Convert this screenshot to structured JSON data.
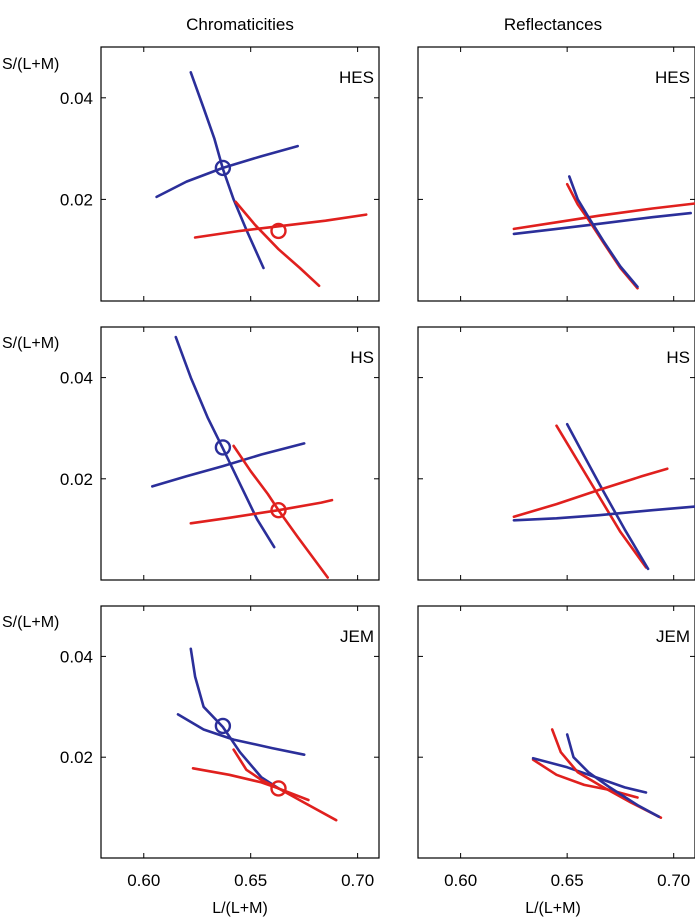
{
  "figure": {
    "column_titles": [
      "Chromaticities",
      "Reflectances"
    ],
    "y_axis_label": "S/(L+M)",
    "x_axis_label": "L/(L+M)",
    "colors": {
      "blue": "#2b2f9a",
      "red": "#e0201e"
    }
  },
  "chart_data": [
    {
      "type": "line",
      "panel": "chromaticities-HES",
      "label": "HES",
      "xlim": [
        0.58,
        0.71
      ],
      "ylim": [
        0.0,
        0.05
      ],
      "xticks": [
        0.6,
        0.65,
        0.7
      ],
      "yticks": [
        0.02,
        0.04
      ],
      "series": [
        {
          "color": "blue",
          "points": [
            [
              0.622,
              0.045
            ],
            [
              0.628,
              0.038
            ],
            [
              0.633,
              0.032
            ],
            [
              0.637,
              0.026
            ],
            [
              0.642,
              0.02
            ],
            [
              0.648,
              0.014
            ],
            [
              0.656,
              0.0065
            ]
          ]
        },
        {
          "color": "blue",
          "points": [
            [
              0.606,
              0.0205
            ],
            [
              0.62,
              0.0235
            ],
            [
              0.637,
              0.0262
            ],
            [
              0.655,
              0.0285
            ],
            [
              0.672,
              0.0305
            ]
          ]
        },
        {
          "color": "red",
          "points": [
            [
              0.643,
              0.0195
            ],
            [
              0.652,
              0.015
            ],
            [
              0.663,
              0.0102
            ],
            [
              0.673,
              0.0065
            ],
            [
              0.682,
              0.003
            ]
          ]
        },
        {
          "color": "red",
          "points": [
            [
              0.624,
              0.0125
            ],
            [
              0.645,
              0.0138
            ],
            [
              0.663,
              0.0147
            ],
            [
              0.685,
              0.0158
            ],
            [
              0.704,
              0.017
            ]
          ]
        }
      ],
      "markers": [
        {
          "color": "blue",
          "x": 0.637,
          "y": 0.0262
        },
        {
          "color": "red",
          "x": 0.663,
          "y": 0.0138
        }
      ]
    },
    {
      "type": "line",
      "panel": "reflectances-HES",
      "label": "HES",
      "xlim": [
        0.58,
        0.71
      ],
      "ylim": [
        0.0,
        0.05
      ],
      "xticks": [
        0.6,
        0.65,
        0.7
      ],
      "yticks": [
        0.02,
        0.04
      ],
      "series": [
        {
          "color": "red",
          "points": [
            [
              0.625,
              0.0142
            ],
            [
              0.645,
              0.0155
            ],
            [
              0.665,
              0.0168
            ],
            [
              0.69,
              0.0182
            ],
            [
              0.71,
              0.0192
            ]
          ]
        },
        {
          "color": "blue",
          "points": [
            [
              0.625,
              0.0132
            ],
            [
              0.645,
              0.0142
            ],
            [
              0.665,
              0.0152
            ],
            [
              0.69,
              0.0165
            ],
            [
              0.708,
              0.0173
            ]
          ]
        },
        {
          "color": "red",
          "points": [
            [
              0.65,
              0.023
            ],
            [
              0.655,
              0.019
            ],
            [
              0.66,
              0.016
            ],
            [
              0.667,
              0.0115
            ],
            [
              0.675,
              0.0065
            ],
            [
              0.683,
              0.0025
            ]
          ]
        },
        {
          "color": "blue",
          "points": [
            [
              0.651,
              0.0245
            ],
            [
              0.655,
              0.02
            ],
            [
              0.66,
              0.0165
            ],
            [
              0.667,
              0.0118
            ],
            [
              0.675,
              0.0068
            ],
            [
              0.683,
              0.0028
            ]
          ]
        }
      ],
      "markers": []
    },
    {
      "type": "line",
      "panel": "chromaticities-HS",
      "label": "HS",
      "xlim": [
        0.58,
        0.71
      ],
      "ylim": [
        0.0,
        0.05
      ],
      "xticks": [
        0.6,
        0.65,
        0.7
      ],
      "yticks": [
        0.02,
        0.04
      ],
      "series": [
        {
          "color": "blue",
          "points": [
            [
              0.615,
              0.048
            ],
            [
              0.622,
              0.04
            ],
            [
              0.63,
              0.032
            ],
            [
              0.637,
              0.026
            ],
            [
              0.645,
              0.019
            ],
            [
              0.653,
              0.012
            ],
            [
              0.661,
              0.0065
            ]
          ]
        },
        {
          "color": "blue",
          "points": [
            [
              0.604,
              0.0185
            ],
            [
              0.62,
              0.0205
            ],
            [
              0.637,
              0.0225
            ],
            [
              0.655,
              0.0248
            ],
            [
              0.675,
              0.027
            ]
          ]
        },
        {
          "color": "red",
          "points": [
            [
              0.642,
              0.0265
            ],
            [
              0.65,
              0.0215
            ],
            [
              0.658,
              0.017
            ],
            [
              0.663,
              0.0138
            ],
            [
              0.672,
              0.0085
            ],
            [
              0.686,
              0.0005
            ]
          ]
        },
        {
          "color": "red",
          "points": [
            [
              0.622,
              0.0112
            ],
            [
              0.64,
              0.0123
            ],
            [
              0.663,
              0.0138
            ],
            [
              0.683,
              0.0153
            ],
            [
              0.688,
              0.0158
            ]
          ]
        }
      ],
      "markers": [
        {
          "color": "blue",
          "x": 0.637,
          "y": 0.0262
        },
        {
          "color": "red",
          "x": 0.663,
          "y": 0.0138
        }
      ]
    },
    {
      "type": "line",
      "panel": "reflectances-HS",
      "label": "HS",
      "xlim": [
        0.58,
        0.71
      ],
      "ylim": [
        0.0,
        0.05
      ],
      "xticks": [
        0.6,
        0.65,
        0.7
      ],
      "yticks": [
        0.02,
        0.04
      ],
      "series": [
        {
          "color": "red",
          "points": [
            [
              0.645,
              0.0305
            ],
            [
              0.655,
              0.0235
            ],
            [
              0.665,
              0.0165
            ],
            [
              0.675,
              0.0095
            ],
            [
              0.687,
              0.0025
            ]
          ]
        },
        {
          "color": "blue",
          "points": [
            [
              0.65,
              0.0308
            ],
            [
              0.658,
              0.0245
            ],
            [
              0.667,
              0.0175
            ],
            [
              0.677,
              0.01
            ],
            [
              0.688,
              0.0022
            ]
          ]
        },
        {
          "color": "red",
          "points": [
            [
              0.625,
              0.0125
            ],
            [
              0.645,
              0.015
            ],
            [
              0.665,
              0.0178
            ],
            [
              0.685,
              0.0205
            ],
            [
              0.697,
              0.022
            ]
          ]
        },
        {
          "color": "blue",
          "points": [
            [
              0.625,
              0.0118
            ],
            [
              0.645,
              0.0122
            ],
            [
              0.665,
              0.0128
            ],
            [
              0.69,
              0.0138
            ],
            [
              0.71,
              0.0145
            ]
          ]
        }
      ],
      "markers": []
    },
    {
      "type": "line",
      "panel": "chromaticities-JEM",
      "label": "JEM",
      "xlim": [
        0.58,
        0.71
      ],
      "ylim": [
        0.0,
        0.05
      ],
      "xticks": [
        0.6,
        0.65,
        0.7
      ],
      "yticks": [
        0.02,
        0.04
      ],
      "series": [
        {
          "color": "blue",
          "points": [
            [
              0.622,
              0.0415
            ],
            [
              0.624,
              0.036
            ],
            [
              0.628,
              0.03
            ],
            [
              0.637,
              0.026
            ],
            [
              0.645,
              0.021
            ],
            [
              0.655,
              0.016
            ],
            [
              0.663,
              0.0138
            ]
          ]
        },
        {
          "color": "blue",
          "points": [
            [
              0.616,
              0.0285
            ],
            [
              0.628,
              0.0255
            ],
            [
              0.642,
              0.0235
            ],
            [
              0.66,
              0.0218
            ],
            [
              0.675,
              0.0205
            ]
          ]
        },
        {
          "color": "red",
          "points": [
            [
              0.642,
              0.0215
            ],
            [
              0.648,
              0.0175
            ],
            [
              0.655,
              0.0155
            ],
            [
              0.663,
              0.0138
            ],
            [
              0.675,
              0.011
            ],
            [
              0.69,
              0.0075
            ]
          ]
        },
        {
          "color": "red",
          "points": [
            [
              0.623,
              0.0178
            ],
            [
              0.64,
              0.0165
            ],
            [
              0.655,
              0.015
            ],
            [
              0.663,
              0.0138
            ],
            [
              0.677,
              0.0115
            ]
          ]
        }
      ],
      "markers": [
        {
          "color": "blue",
          "x": 0.637,
          "y": 0.0262
        },
        {
          "color": "red",
          "x": 0.663,
          "y": 0.0138
        }
      ]
    },
    {
      "type": "line",
      "panel": "reflectances-JEM",
      "label": "JEM",
      "xlim": [
        0.58,
        0.71
      ],
      "ylim": [
        0.0,
        0.05
      ],
      "xticks": [
        0.6,
        0.65,
        0.7
      ],
      "yticks": [
        0.02,
        0.04
      ],
      "series": [
        {
          "color": "red",
          "points": [
            [
              0.634,
              0.0195
            ],
            [
              0.645,
              0.0165
            ],
            [
              0.658,
              0.0145
            ],
            [
              0.67,
              0.0135
            ],
            [
              0.683,
              0.012
            ]
          ]
        },
        {
          "color": "blue",
          "points": [
            [
              0.634,
              0.0198
            ],
            [
              0.65,
              0.018
            ],
            [
              0.665,
              0.0158
            ],
            [
              0.677,
              0.014
            ],
            [
              0.687,
              0.013
            ]
          ]
        },
        {
          "color": "red",
          "points": [
            [
              0.643,
              0.0255
            ],
            [
              0.647,
              0.021
            ],
            [
              0.655,
              0.017
            ],
            [
              0.665,
              0.0145
            ],
            [
              0.68,
              0.011
            ],
            [
              0.694,
              0.008
            ]
          ]
        },
        {
          "color": "blue",
          "points": [
            [
              0.65,
              0.0245
            ],
            [
              0.653,
              0.02
            ],
            [
              0.66,
              0.017
            ],
            [
              0.67,
              0.014
            ],
            [
              0.683,
              0.0105
            ],
            [
              0.693,
              0.0082
            ]
          ]
        }
      ],
      "markers": []
    }
  ]
}
